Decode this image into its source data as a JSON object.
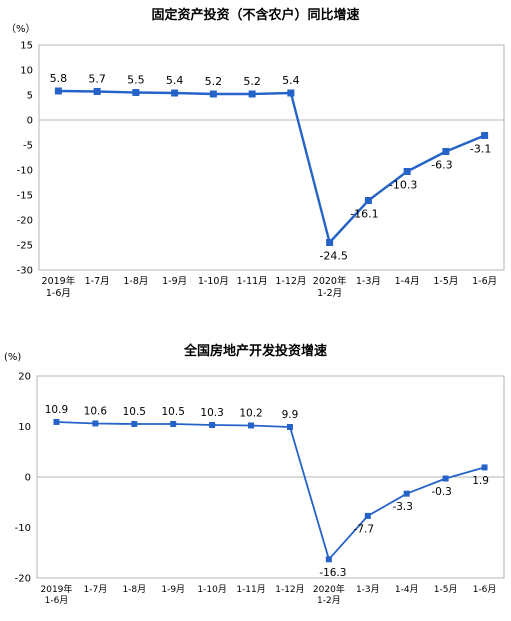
{
  "chart_data": [
    {
      "type": "line",
      "title": "固定资产投资（不含农户）同比增速",
      "unit": "（%）",
      "categories": [
        [
          "2019年",
          "1-6月"
        ],
        [
          "1-7月"
        ],
        [
          "1-8月"
        ],
        [
          "1-9月"
        ],
        [
          "1-10月"
        ],
        [
          "1-11月"
        ],
        [
          "1-12月"
        ],
        [
          "2020年",
          "1-2月"
        ],
        [
          "1-3月"
        ],
        [
          "1-4月"
        ],
        [
          "1-5月"
        ],
        [
          "1-6月"
        ]
      ],
      "values": [
        5.8,
        5.7,
        5.5,
        5.4,
        5.2,
        5.2,
        5.4,
        -24.5,
        -16.1,
        -10.3,
        -6.3,
        -3.1
      ],
      "data_labels": [
        "5.8",
        "5.7",
        "5.5",
        "5.4",
        "5.2",
        "5.2",
        "5.4",
        "-24.5",
        "-16.1",
        "-10.3",
        "-6.3",
        "-3.1"
      ],
      "yticks": [
        15,
        10,
        5,
        0,
        -5,
        -10,
        -15,
        -20,
        -25,
        -30
      ],
      "ylim": [
        -30,
        15
      ],
      "grid": false,
      "color": "#2563c8"
    },
    {
      "type": "line",
      "title": "全国房地产开发投资增速",
      "unit": "(%)",
      "categories": [
        [
          "2019年",
          "1-6月"
        ],
        [
          "1-7月"
        ],
        [
          "1-8月"
        ],
        [
          "1-9月"
        ],
        [
          "1-10月"
        ],
        [
          "1-11月"
        ],
        [
          "1-12月"
        ],
        [
          "2020年",
          "1-2月"
        ],
        [
          "1-3月"
        ],
        [
          "1-4月"
        ],
        [
          "1-5月"
        ],
        [
          "1-6月"
        ]
      ],
      "values": [
        10.9,
        10.6,
        10.5,
        10.5,
        10.3,
        10.2,
        9.9,
        -16.3,
        -7.7,
        -3.3,
        -0.3,
        1.9
      ],
      "data_labels": [
        "10.9",
        "10.6",
        "10.5",
        "10.5",
        "10.3",
        "10.2",
        "9.9",
        "-16.3",
        "-7.7",
        "-3.3",
        "-0.3",
        "1.9"
      ],
      "yticks": [
        20,
        10,
        0,
        -10,
        -20
      ],
      "ylim": [
        -20,
        20
      ],
      "grid": false,
      "color": "#2563c8"
    }
  ]
}
